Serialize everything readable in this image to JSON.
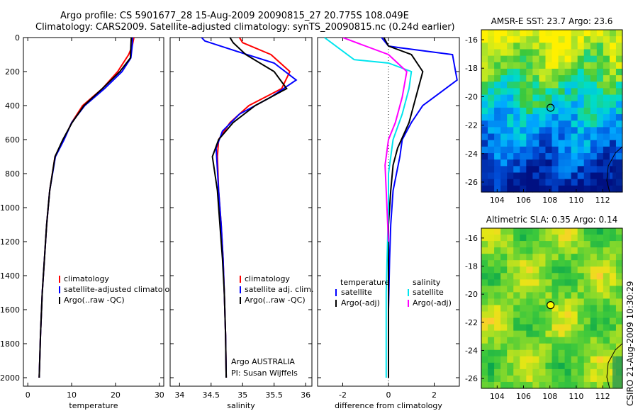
{
  "header": {
    "line1": "Argo profile: CS 5901677_28 15-Aug-2009 20090815_27 20.775S 108.049E",
    "line2": "Climatology: CARS2009. Satellite-adjusted climatology: synTS_20090815.nc (0.24d earlier)"
  },
  "side_label": "CSIRO 21-Aug-2009 10:30:29",
  "colors": {
    "climatology": "#ff0000",
    "satellite": "#0000ff",
    "argo": "#000000",
    "satellite_diff": "#00e5ee",
    "argo_sal_diff": "#ff00ff",
    "marker": "#ffff00"
  },
  "chart_data": [
    {
      "type": "line",
      "xlabel": "temperature",
      "ylabel": "",
      "xlim": [
        -1,
        31
      ],
      "ylim": [
        2050,
        0
      ],
      "xticks": [
        "0",
        "10",
        "20",
        "30"
      ],
      "yticks": [
        "0",
        "200",
        "400",
        "600",
        "800",
        "1000",
        "1200",
        "1400",
        "1600",
        "1800",
        "2000"
      ],
      "legend": [
        "climatology",
        "satellite-adjusted climatology",
        "Argo(..raw -QC)"
      ],
      "series": [
        {
          "name": "climatology",
          "color": "#ff0000",
          "x": [
            24.2,
            23.8,
            23.0,
            20.5,
            17.0,
            12.5,
            10.0,
            8.2,
            6.2,
            5.0,
            4.3,
            3.8,
            3.3,
            2.9,
            2.6
          ],
          "y": [
            0,
            50,
            100,
            200,
            300,
            400,
            500,
            600,
            700,
            900,
            1100,
            1300,
            1500,
            1750,
            2000
          ]
        },
        {
          "name": "satellite-adjusted climatology",
          "color": "#0000ff",
          "x": [
            23.9,
            23.8,
            23.5,
            21.5,
            17.5,
            13.0,
            10.0,
            8.3,
            6.3,
            5.0,
            4.3,
            3.8,
            3.3,
            2.9,
            2.6
          ],
          "y": [
            0,
            50,
            120,
            200,
            300,
            400,
            500,
            600,
            700,
            900,
            1100,
            1300,
            1500,
            1750,
            2000
          ]
        },
        {
          "name": "Argo(..raw -QC)",
          "color": "#000000",
          "x": [
            23.6,
            23.5,
            23.4,
            21.0,
            17.0,
            12.8,
            10.1,
            8.0,
            6.2,
            5.0,
            4.3,
            3.8,
            3.3,
            2.9,
            2.6
          ],
          "y": [
            0,
            50,
            120,
            200,
            300,
            400,
            500,
            600,
            700,
            900,
            1100,
            1300,
            1500,
            1750,
            2000
          ]
        }
      ]
    },
    {
      "type": "line",
      "xlabel": "salinity",
      "xlim": [
        33.85,
        36.1
      ],
      "ylim": [
        2050,
        0
      ],
      "xticks": [
        "34",
        "34.5",
        "35",
        "35.5",
        "36"
      ],
      "legend": [
        "climatology",
        "satellite adj. clim.",
        "Argo(..raw -QC)"
      ],
      "annotation": [
        "Argo AUSTRALIA",
        "PI: Susan Wijffels"
      ],
      "series": [
        {
          "name": "climatology",
          "color": "#ff0000",
          "x": [
            34.95,
            35.0,
            35.45,
            35.75,
            35.62,
            35.1,
            34.8,
            34.62,
            34.6,
            34.62,
            34.66,
            34.69,
            34.71,
            34.73,
            34.74
          ],
          "y": [
            0,
            30,
            100,
            200,
            300,
            400,
            500,
            600,
            700,
            900,
            1100,
            1300,
            1500,
            1750,
            2000
          ]
        },
        {
          "name": "satellite adj. clim.",
          "color": "#0000ff",
          "x": [
            34.35,
            34.4,
            34.9,
            35.5,
            35.85,
            35.45,
            34.95,
            34.68,
            34.58,
            34.62,
            34.66,
            34.69,
            34.71,
            34.73,
            34.74
          ],
          "y": [
            0,
            20,
            80,
            150,
            250,
            350,
            450,
            550,
            650,
            900,
            1100,
            1300,
            1500,
            1750,
            2000
          ]
        },
        {
          "name": "Argo(..raw -QC)",
          "color": "#000000",
          "x": [
            34.8,
            34.85,
            35.05,
            35.5,
            35.7,
            35.2,
            34.85,
            34.62,
            34.52,
            34.6,
            34.64,
            34.68,
            34.71,
            34.73,
            34.74
          ],
          "y": [
            0,
            30,
            100,
            200,
            300,
            400,
            500,
            600,
            700,
            900,
            1100,
            1300,
            1500,
            1750,
            2000
          ]
        }
      ]
    },
    {
      "type": "line",
      "xlabel": "difference from climatology",
      "xlim": [
        -3.1,
        3.1
      ],
      "ylim": [
        2050,
        0
      ],
      "xticks": [
        "-2",
        "0",
        "2"
      ],
      "legend": [
        "temperature",
        "satellite",
        "Argo(-adj)",
        "salinity",
        "satellite",
        "Argo(-adj)"
      ],
      "series": [
        {
          "name": "satellite",
          "group": "temperature",
          "color": "#0000ff",
          "x": [
            -0.3,
            0.0,
            0.5,
            2.8,
            3.0,
            1.5,
            1.0,
            0.8,
            0.6,
            0.5,
            0.2,
            0.1,
            0.05,
            0.0,
            0.0
          ],
          "y": [
            0,
            50,
            60,
            100,
            250,
            400,
            500,
            550,
            600,
            700,
            900,
            1100,
            1300,
            1600,
            2000
          ]
        },
        {
          "name": "Argo(-adj)",
          "group": "temperature",
          "color": "#000000",
          "x": [
            -0.2,
            0.0,
            1.0,
            1.5,
            1.2,
            0.9,
            0.7,
            0.4,
            0.2,
            0.1,
            0.0,
            0.0,
            0.0
          ],
          "y": [
            0,
            50,
            100,
            200,
            350,
            500,
            560,
            650,
            750,
            900,
            1100,
            1400,
            2000
          ]
        },
        {
          "name": "satellite",
          "group": "salinity",
          "color": "#00e5ee",
          "x": [
            -2.8,
            -1.5,
            0.0,
            1.0,
            0.9,
            0.6,
            0.2,
            0.0,
            0.0,
            -0.1,
            -0.1
          ],
          "y": [
            0,
            130,
            150,
            200,
            300,
            450,
            600,
            800,
            1000,
            1500,
            2000
          ]
        },
        {
          "name": "Argo(-adj)",
          "group": "salinity",
          "color": "#ff00ff",
          "x": [
            -2.0,
            -1.0,
            0.0,
            0.8,
            0.6,
            0.3,
            0.0,
            -0.15,
            -0.1,
            0.0
          ],
          "y": [
            0,
            50,
            100,
            200,
            350,
            500,
            600,
            750,
            900,
            1200
          ]
        }
      ]
    },
    {
      "type": "heatmap",
      "title": "AMSR-E SST: 23.7 Argo: 23.6",
      "xlim": [
        102.8,
        113.5
      ],
      "ylim": [
        -26.7,
        -15.3
      ],
      "xticks": [
        "104",
        "106",
        "108",
        "110",
        "112"
      ],
      "yticks": [
        "-16",
        "-18",
        "-20",
        "-22",
        "-24",
        "-26"
      ],
      "marker": {
        "x": 108.05,
        "y": -20.78
      }
    },
    {
      "type": "heatmap",
      "title": "Altimetric SLA: 0.35 Argo: 0.14",
      "xlim": [
        102.8,
        113.5
      ],
      "ylim": [
        -26.7,
        -15.3
      ],
      "xticks": [
        "104",
        "106",
        "108",
        "110",
        "112"
      ],
      "yticks": [
        "-16",
        "-18",
        "-20",
        "-22",
        "-24",
        "-26"
      ],
      "marker": {
        "x": 108.05,
        "y": -20.78
      }
    }
  ]
}
